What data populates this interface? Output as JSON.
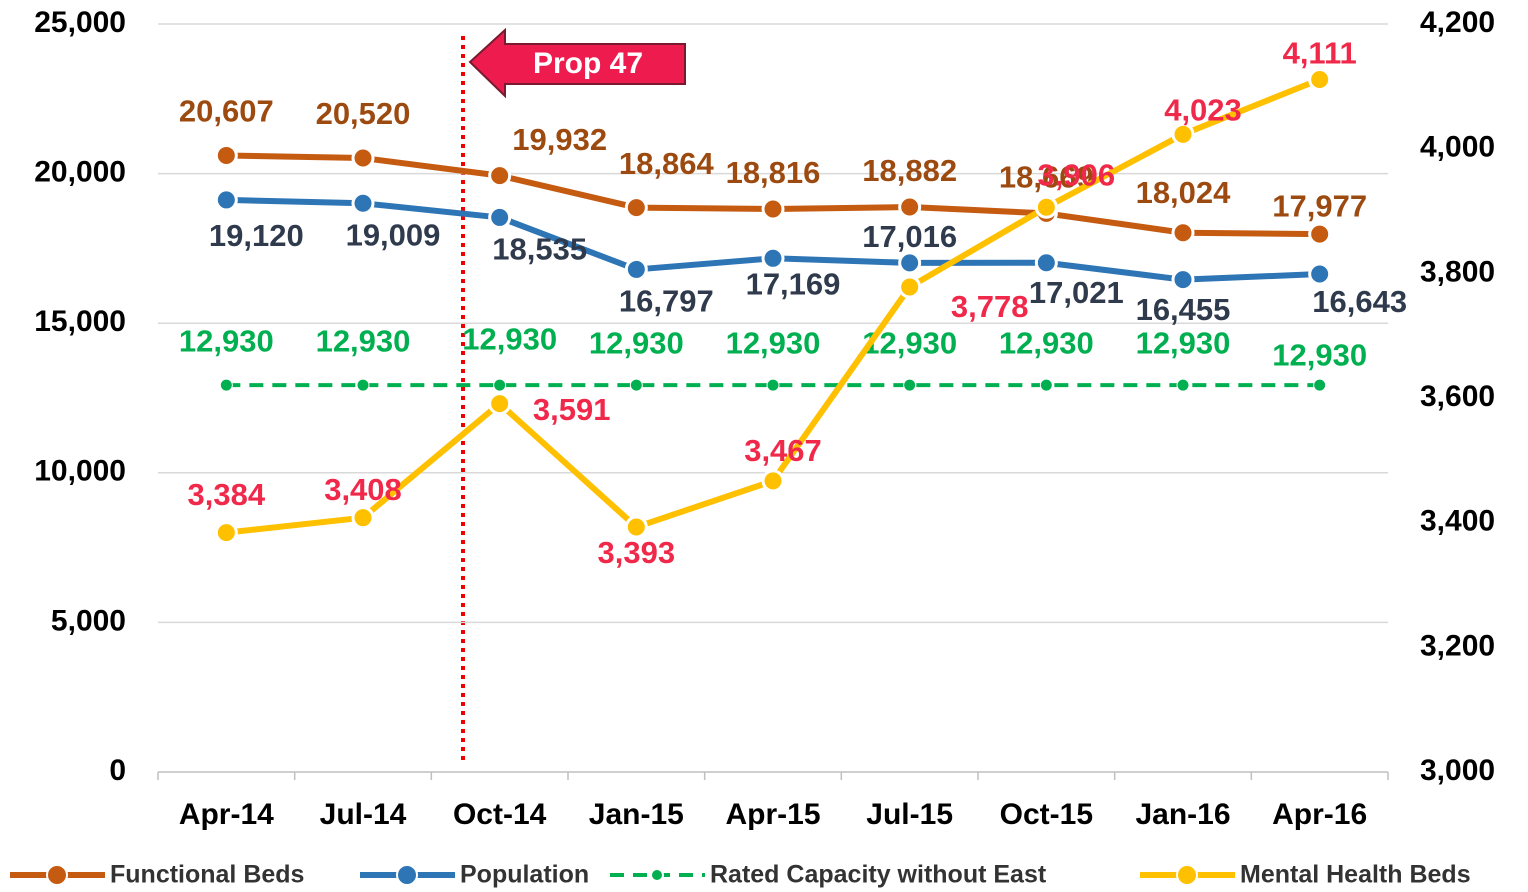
{
  "chart_data": {
    "type": "line",
    "categories": [
      "Apr-14",
      "Jul-14",
      "Oct-14",
      "Jan-15",
      "Apr-15",
      "Jul-15",
      "Oct-15",
      "Jan-16",
      "Apr-16"
    ],
    "ylim": [
      0,
      25000
    ],
    "yticks": [
      0,
      {
        "value": 5000,
        "label": "5,000"
      },
      {
        "value": 10000,
        "label": "10,000"
      },
      {
        "value": 15000,
        "label": "15,000"
      },
      {
        "value": 20000,
        "label": "20,000"
      },
      {
        "value": 25000,
        "label": "25,000"
      }
    ],
    "y2lim": [
      3000,
      4200
    ],
    "y2ticks": [
      {
        "value": 3000,
        "label": "3,000"
      },
      {
        "value": 3200,
        "label": "3,200"
      },
      {
        "value": 3400,
        "label": "3,400"
      },
      {
        "value": 3600,
        "label": "3,600"
      },
      {
        "value": 3800,
        "label": "3,800"
      },
      {
        "value": 4000,
        "label": "4,000"
      },
      {
        "value": 4200,
        "label": "4,200"
      }
    ],
    "grid": true,
    "legend": "bottom",
    "annotations": [
      "Prop 47"
    ],
    "series": [
      {
        "name": "Functional Beds",
        "color": "#c55a11",
        "label_color": "#9c4a10",
        "values": [
          20607,
          20520,
          19932,
          18864,
          18816,
          18882,
          18669,
          18024,
          17977
        ],
        "value_labels": [
          "20,607",
          "20,520",
          "19,932",
          "18,864",
          "18,816",
          "18,882",
          "18,669",
          "18,024",
          "17,977"
        ]
      },
      {
        "name": "Population",
        "color": "#2e75b6",
        "label_color": "#2f3a4c",
        "values": [
          19120,
          19009,
          18535,
          16797,
          17169,
          17016,
          17021,
          16455,
          16643
        ],
        "value_labels": [
          "19,120",
          "19,009",
          "18,535",
          "16,797",
          "17,169",
          "17,016",
          "17,021",
          "16,455",
          "16,643"
        ]
      },
      {
        "name": "Rated Capacity without East",
        "color": "#00b050",
        "label_color": "#00b050",
        "dashed": true,
        "values": [
          12930,
          12930,
          12930,
          12930,
          12930,
          12930,
          12930,
          12930,
          12930
        ],
        "value_labels": [
          "12,930",
          "12,930",
          "12,930",
          "12,930",
          "12,930",
          "12,930",
          "12,930",
          "12,930",
          "12,930"
        ]
      },
      {
        "name": "Mental Health Beds",
        "color": "#ffc000",
        "label_color": "#f0284a",
        "axis": "y2",
        "values": [
          3384,
          3408,
          3591,
          3393,
          3467,
          3778,
          3906,
          4023,
          4111
        ],
        "value_labels": [
          "3,384",
          "3,408",
          "3,591",
          "3,393",
          "3,467",
          "3,778",
          "3,906",
          "4,023",
          "4,111"
        ]
      }
    ]
  }
}
